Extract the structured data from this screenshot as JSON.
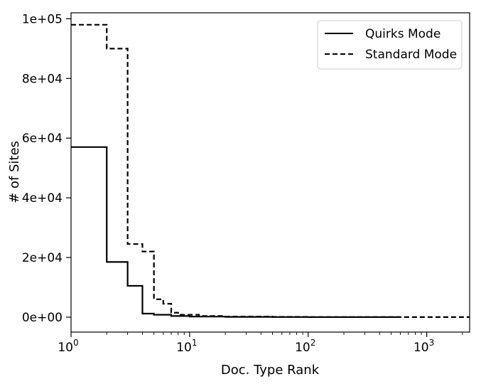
{
  "chart_data": {
    "type": "line",
    "title": "",
    "xlabel": "Doc. Type Rank",
    "ylabel": "# of Sites",
    "xscale": "log",
    "xlim": [
      1,
      2300
    ],
    "ylim": [
      -5000,
      102000
    ],
    "x_ticks": [
      {
        "value": 1,
        "base": "10",
        "exp": "0"
      },
      {
        "value": 10,
        "base": "10",
        "exp": "1"
      },
      {
        "value": 100,
        "base": "10",
        "exp": "2"
      },
      {
        "value": 1000,
        "base": "10",
        "exp": "3"
      }
    ],
    "y_ticks": [
      {
        "value": 0,
        "label": "0e+00"
      },
      {
        "value": 20000,
        "label": "2e+04"
      },
      {
        "value": 40000,
        "label": "4e+04"
      },
      {
        "value": 60000,
        "label": "6e+04"
      },
      {
        "value": 80000,
        "label": "8e+04"
      },
      {
        "value": 100000,
        "label": "1e+05"
      }
    ],
    "legend_position": "top-right",
    "grid": false,
    "series": [
      {
        "name": "Quirks Mode",
        "style": "solid",
        "color": "#000000",
        "x": [
          1,
          2,
          2,
          3,
          3,
          4,
          4,
          5,
          5,
          7,
          7,
          10,
          10,
          20,
          20,
          50,
          50,
          100,
          100,
          600
        ],
        "y": [
          57000,
          57000,
          18500,
          18500,
          10500,
          10500,
          1200,
          1200,
          800,
          800,
          400,
          400,
          200,
          200,
          100,
          100,
          50,
          50,
          20,
          20
        ]
      },
      {
        "name": "Standard Mode",
        "style": "dashed",
        "color": "#000000",
        "x": [
          1,
          2,
          2,
          3,
          3,
          4,
          4,
          5,
          5,
          6,
          6,
          7,
          7,
          8,
          8,
          12,
          12,
          20,
          20,
          50,
          50,
          100,
          100,
          2300
        ],
        "y": [
          98000,
          98000,
          90000,
          90000,
          24500,
          24500,
          22000,
          22000,
          6000,
          6000,
          4500,
          4500,
          1500,
          1500,
          800,
          800,
          400,
          400,
          200,
          200,
          100,
          100,
          30,
          30
        ]
      }
    ]
  }
}
